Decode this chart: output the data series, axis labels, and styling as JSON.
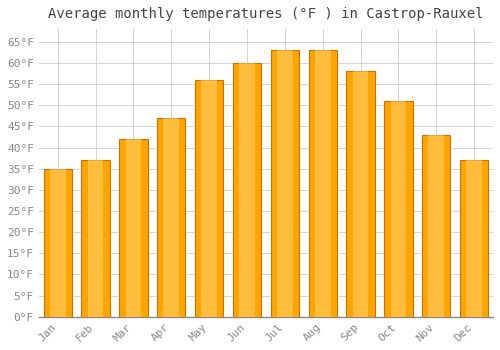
{
  "title": "Average monthly temperatures (°F ) in Castrop-Rauxel",
  "months": [
    "Jan",
    "Feb",
    "Mar",
    "Apr",
    "May",
    "Jun",
    "Jul",
    "Aug",
    "Sep",
    "Oct",
    "Nov",
    "Dec"
  ],
  "values": [
    35,
    37,
    42,
    47,
    56,
    60,
    63,
    63,
    58,
    51,
    43,
    37
  ],
  "bar_color": "#FFA500",
  "bar_edge_color": "#CC7000",
  "background_color": "#FFFFFF",
  "plot_bg_color": "#FFFFFF",
  "ylim": [
    0,
    68
  ],
  "yticks": [
    0,
    5,
    10,
    15,
    20,
    25,
    30,
    35,
    40,
    45,
    50,
    55,
    60,
    65
  ],
  "title_fontsize": 10,
  "tick_fontsize": 8,
  "grid_color": "#CCCCCC",
  "tick_color": "#888888",
  "title_color": "#444444"
}
